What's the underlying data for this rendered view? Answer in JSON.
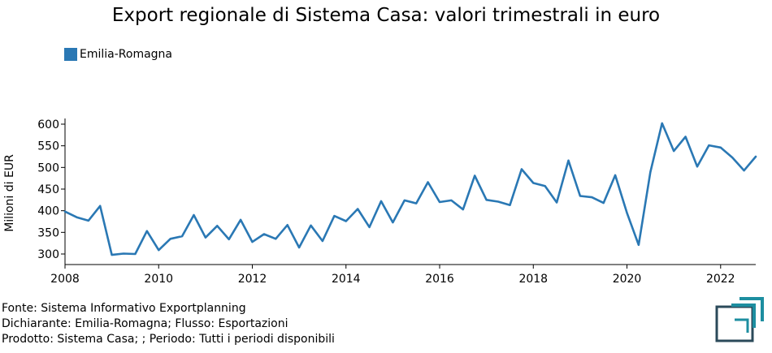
{
  "chart_data": {
    "type": "line",
    "title": "Export regionale di Sistema Casa: valori trimestrali in euro",
    "ylabel": "Milioni di EUR",
    "xlabel": "",
    "ylim": [
      290,
      610
    ],
    "xlim": [
      2008,
      2022.75
    ],
    "x_ticks": [
      "2008",
      "2010",
      "2012",
      "2014",
      "2016",
      "2018",
      "2020",
      "2022"
    ],
    "y_ticks": [
      "300",
      "350",
      "400",
      "450",
      "500",
      "550",
      "600"
    ],
    "legend_position": "top-left",
    "grid": false,
    "series": [
      {
        "name": "Emilia-Romagna",
        "color": "#2a78b4",
        "x": [
          2008.0,
          2008.25,
          2008.5,
          2008.75,
          2009.0,
          2009.25,
          2009.5,
          2009.75,
          2010.0,
          2010.25,
          2010.5,
          2010.75,
          2011.0,
          2011.25,
          2011.5,
          2011.75,
          2012.0,
          2012.25,
          2012.5,
          2012.75,
          2013.0,
          2013.25,
          2013.5,
          2013.75,
          2014.0,
          2014.25,
          2014.5,
          2014.75,
          2015.0,
          2015.25,
          2015.5,
          2015.75,
          2016.0,
          2016.25,
          2016.5,
          2016.75,
          2017.0,
          2017.25,
          2017.5,
          2017.75,
          2018.0,
          2018.25,
          2018.5,
          2018.75,
          2019.0,
          2019.25,
          2019.5,
          2019.75,
          2020.0,
          2020.25,
          2020.5,
          2020.75,
          2021.0,
          2021.25,
          2021.5,
          2021.75,
          2022.0,
          2022.25,
          2022.5,
          2022.75
        ],
        "values": [
          398,
          385,
          377,
          411,
          298,
          301,
          300,
          353,
          309,
          335,
          341,
          390,
          338,
          365,
          334,
          379,
          328,
          346,
          335,
          367,
          315,
          366,
          330,
          388,
          376,
          404,
          362,
          422,
          373,
          424,
          417,
          466,
          420,
          424,
          403,
          481,
          425,
          421,
          413,
          496,
          464,
          457,
          419,
          516,
          434,
          431,
          418,
          482,
          395,
          321,
          489,
          602,
          538,
          571,
          502,
          551,
          546,
          523,
          493,
          525
        ]
      }
    ]
  },
  "footer": {
    "line1": "Fonte: Sistema Informativo Exportplanning",
    "line2": "Dichiarante: Emilia-Romagna; Flusso: Esportazioni",
    "line3": "Prodotto: Sistema Casa; ; Periodo: Tutti i periodi disponibili"
  },
  "logo": {
    "icon": "exportplanning-logo-icon",
    "color": "#1d8ea0",
    "dark": "#2b4a5a"
  }
}
